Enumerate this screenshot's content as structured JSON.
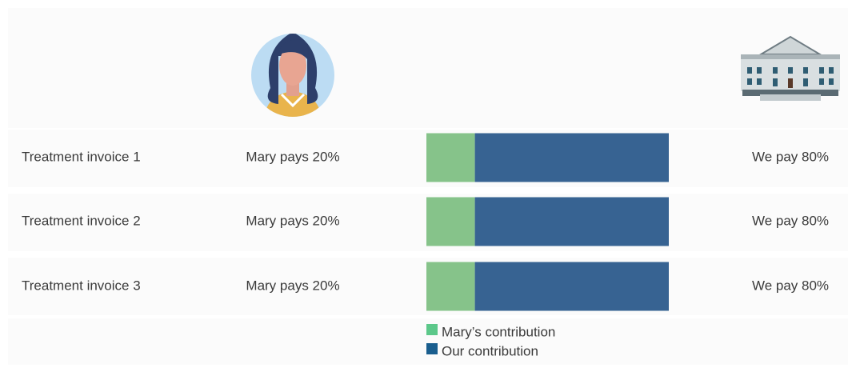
{
  "chart_data": {
    "type": "bar",
    "orientation": "horizontal",
    "stacked": true,
    "categories": [
      "Treatment invoice 1",
      "Treatment invoice 2",
      "Treatment invoice 3"
    ],
    "series": [
      {
        "name": "Mary’s contribution",
        "color": "#86c38a",
        "legend_color": "#5cc88a",
        "values": [
          20,
          20,
          20
        ],
        "value_labels": [
          "Mary pays 20%",
          "Mary pays 20%",
          "Mary pays 20%"
        ]
      },
      {
        "name": "Our contribution",
        "color": "#376392",
        "legend_color": "#1a5e8e",
        "values": [
          80,
          80,
          80
        ],
        "value_labels": [
          "We pay 80%",
          "We pay 80%",
          "We pay 80%"
        ]
      }
    ],
    "xlim": [
      0,
      100
    ]
  }
}
